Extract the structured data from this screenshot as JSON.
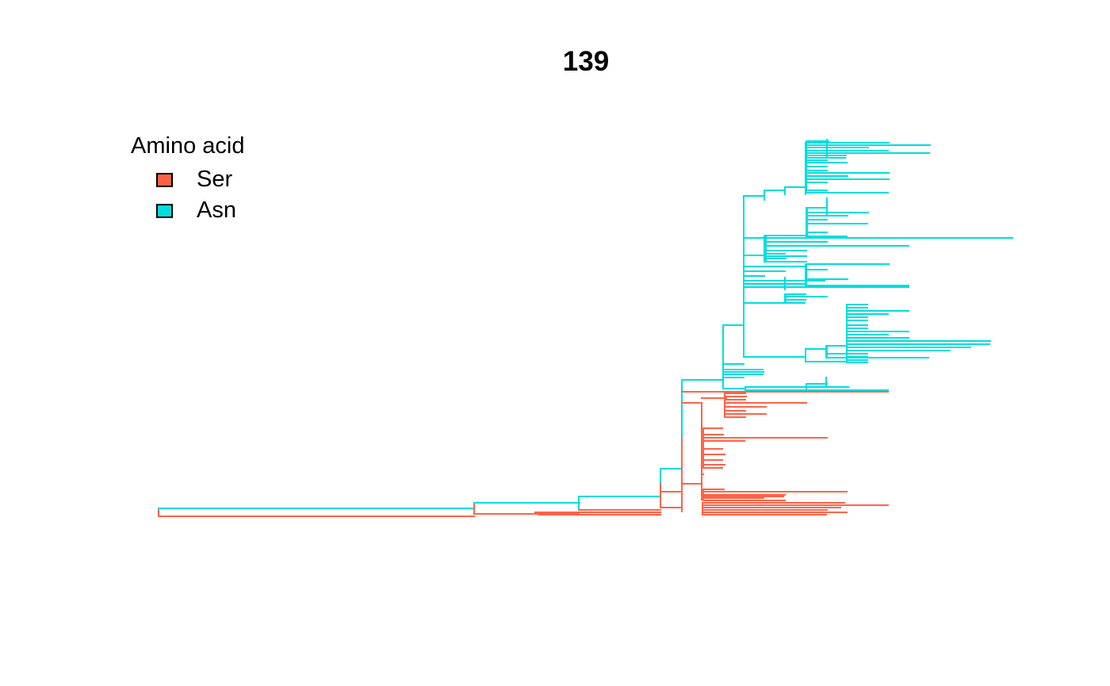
{
  "title": "139",
  "legend": {
    "title": "Amino acid",
    "items": [
      {
        "label": "Ser",
        "color": "#FF6347"
      },
      {
        "label": "Asn",
        "color": "#00DDDD"
      }
    ]
  },
  "colors": {
    "ser": "#FF6347",
    "asn": "#00DDDD"
  }
}
